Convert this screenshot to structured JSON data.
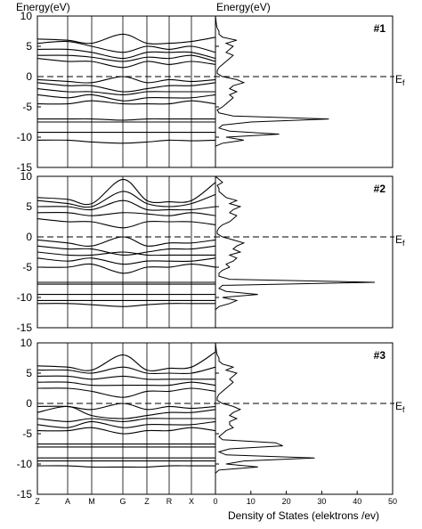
{
  "labels": {
    "energy_left": "Energy(eV)",
    "energy_right": "Energy(eV)",
    "xlabel": "Density of States (elektrons /ev)",
    "fermi": {
      "main": "E",
      "sub": "f"
    }
  },
  "chart_data": [
    {
      "type": "band_dos",
      "title": "#1",
      "ylim": [
        -15,
        10
      ],
      "yticks": [
        10,
        5,
        0,
        -5,
        -10,
        -15
      ],
      "fermi_level": 0,
      "dos_xlim": [
        0,
        50
      ],
      "bands": [
        {
          "values": [
            6.2,
            6.0,
            5.5,
            7.0,
            5.5,
            5.5,
            5.8,
            6.5
          ]
        },
        {
          "values": [
            5.5,
            5.8,
            5.0,
            4.0,
            5.0,
            4.5,
            5.0,
            4.0
          ]
        },
        {
          "values": [
            4.5,
            4.5,
            4.0,
            3.0,
            4.0,
            4.0,
            4.0,
            3.0
          ]
        },
        {
          "values": [
            3.5,
            3.5,
            3.2,
            2.5,
            3.2,
            3.0,
            3.5,
            2.5
          ]
        },
        {
          "values": [
            3.0,
            2.5,
            2.5,
            1.5,
            2.5,
            2.0,
            2.5,
            2.0
          ]
        },
        {
          "values": [
            -0.5,
            -0.8,
            -1.0,
            0.0,
            -1.0,
            -0.5,
            -0.8,
            -0.5
          ]
        },
        {
          "values": [
            -1.0,
            -1.5,
            -1.5,
            -2.5,
            -2.0,
            -1.5,
            -1.5,
            -1.0
          ]
        },
        {
          "values": [
            -2.0,
            -2.5,
            -2.5,
            -3.0,
            -2.5,
            -2.5,
            -2.5,
            -2.5
          ]
        },
        {
          "values": [
            -3.0,
            -3.5,
            -3.0,
            -4.0,
            -3.5,
            -3.5,
            -3.5,
            -3.0
          ]
        },
        {
          "values": [
            -4.5,
            -4.5,
            -4.0,
            -4.5,
            -4.5,
            -4.5,
            -4.0,
            -4.5
          ]
        },
        {
          "values": [
            -7.0,
            -7.0,
            -7.0,
            -7.2,
            -7.0,
            -7.0,
            -7.0,
            -7.0
          ]
        },
        {
          "values": [
            -7.5,
            -7.5,
            -7.5,
            -7.5,
            -7.5,
            -7.5,
            -7.5,
            -7.5
          ]
        },
        {
          "values": [
            -9.2,
            -9.2,
            -9.2,
            -9.2,
            -9.2,
            -9.2,
            -9.2,
            -9.2
          ]
        },
        {
          "values": [
            -10.5,
            -10.5,
            -10.8,
            -11.0,
            -10.8,
            -10.5,
            -10.6,
            -10.5
          ]
        }
      ],
      "dos": {
        "energy": [
          -12,
          -11.5,
          -11,
          -10.5,
          -10,
          -9.5,
          -9,
          -8.5,
          -8,
          -7.5,
          -7,
          -6.5,
          -6,
          -5.5,
          -5,
          -4.5,
          -4,
          -3.5,
          -3,
          -2.5,
          -2,
          -1.5,
          -1,
          -0.5,
          0,
          0.5,
          1,
          1.5,
          2,
          2.5,
          3,
          3.5,
          4,
          4.5,
          5,
          5.5,
          6,
          6.5,
          7,
          7.5,
          8,
          8.5,
          9,
          9.5,
          10
        ],
        "values": [
          0,
          0,
          2,
          8,
          3,
          18,
          4,
          1,
          2,
          10,
          32,
          5,
          1,
          0.5,
          2,
          3,
          4,
          5,
          4,
          6,
          4,
          5,
          8,
          6,
          2,
          0.5,
          0.5,
          1,
          2,
          3,
          4,
          5,
          3,
          4,
          5,
          3,
          6,
          2,
          1,
          1,
          0.5,
          0.3,
          0.2,
          0.1,
          0
        ]
      }
    },
    {
      "type": "band_dos",
      "title": "#2",
      "ylim": [
        -15,
        10
      ],
      "yticks": [
        10,
        5,
        0,
        -5,
        -10,
        -15
      ],
      "fermi_level": 0,
      "dos_xlim": [
        0,
        50
      ],
      "bands": [
        {
          "values": [
            6.5,
            6.2,
            5.5,
            9.5,
            6.0,
            5.8,
            6.0,
            9.0
          ]
        },
        {
          "values": [
            6.0,
            5.5,
            5.0,
            7.5,
            5.5,
            5.0,
            5.5,
            7.0
          ]
        },
        {
          "values": [
            5.0,
            5.0,
            4.5,
            6.0,
            4.5,
            4.5,
            4.5,
            5.0
          ]
        },
        {
          "values": [
            4.0,
            4.0,
            3.5,
            4.0,
            3.8,
            3.5,
            4.0,
            3.5
          ]
        },
        {
          "values": [
            3.0,
            2.5,
            2.5,
            1.5,
            2.5,
            2.5,
            2.5,
            2.0
          ]
        },
        {
          "values": [
            -0.5,
            -1.0,
            -1.5,
            0.0,
            -1.5,
            -1.0,
            -1.0,
            -0.5
          ]
        },
        {
          "values": [
            -1.5,
            -2.0,
            -2.0,
            -3.0,
            -2.5,
            -2.0,
            -2.0,
            -1.5
          ]
        },
        {
          "values": [
            -2.5,
            -3.0,
            -3.0,
            -2.5,
            -3.0,
            -3.0,
            -3.0,
            -3.0
          ]
        },
        {
          "values": [
            -3.5,
            -4.0,
            -3.5,
            -4.5,
            -4.0,
            -4.0,
            -4.0,
            -3.5
          ]
        },
        {
          "values": [
            -5.0,
            -5.0,
            -4.5,
            -6.0,
            -5.0,
            -5.0,
            -4.5,
            -5.0
          ]
        },
        {
          "values": [
            -7.5,
            -7.5,
            -7.5,
            -7.5,
            -7.5,
            -7.5,
            -7.5,
            -7.5
          ]
        },
        {
          "values": [
            -7.8,
            -7.8,
            -7.8,
            -7.8,
            -7.8,
            -7.8,
            -7.8,
            -7.8
          ]
        },
        {
          "values": [
            -9.5,
            -9.5,
            -9.5,
            -9.5,
            -9.5,
            -9.5,
            -9.5,
            -9.5
          ]
        },
        {
          "values": [
            -10.5,
            -10.5,
            -10.5,
            -10.5,
            -10.5,
            -10.5,
            -10.5,
            -10.5
          ]
        },
        {
          "values": [
            -11.0,
            -11.0,
            -11.2,
            -11.5,
            -11.2,
            -11.0,
            -11.0,
            -11.0
          ]
        }
      ],
      "dos": {
        "energy": [
          -12,
          -11.5,
          -11,
          -10.5,
          -10,
          -9.5,
          -9,
          -8.5,
          -8,
          -7.5,
          -7,
          -6.5,
          -6,
          -5.5,
          -5,
          -4.5,
          -4,
          -3.5,
          -3,
          -2.5,
          -2,
          -1.5,
          -1,
          -0.5,
          0,
          0.5,
          1,
          1.5,
          2,
          2.5,
          3,
          3.5,
          4,
          4.5,
          5,
          5.5,
          6,
          6.5,
          7,
          7.5,
          8,
          8.5,
          9,
          9.5,
          10
        ],
        "values": [
          0,
          1,
          4,
          6,
          2,
          12,
          3,
          1,
          2,
          45,
          4,
          1,
          1,
          2,
          4,
          3,
          5,
          6,
          4,
          7,
          5,
          6,
          8,
          5,
          2,
          0.5,
          0.5,
          1,
          2,
          4,
          5,
          6,
          4,
          5,
          7,
          4,
          6,
          3,
          2,
          1,
          1,
          0.5,
          2,
          1,
          0
        ]
      }
    },
    {
      "type": "band_dos",
      "title": "#3",
      "ylim": [
        -15,
        10
      ],
      "yticks": [
        10,
        5,
        0,
        -5,
        -10,
        -15
      ],
      "fermi_level": 0,
      "dos_xlim": [
        0,
        50
      ],
      "xticks": [
        0,
        10,
        20,
        30,
        40,
        50
      ],
      "k_labels": [
        "Z",
        "A",
        "M",
        "G",
        "Z",
        "R",
        "X",
        null
      ],
      "bands": [
        {
          "values": [
            6.2,
            6.0,
            5.5,
            8.0,
            5.5,
            5.8,
            6.0,
            8.5
          ]
        },
        {
          "values": [
            5.5,
            5.5,
            5.0,
            6.0,
            5.0,
            5.0,
            5.0,
            6.0
          ]
        },
        {
          "values": [
            4.5,
            4.5,
            4.0,
            4.5,
            4.0,
            4.0,
            4.0,
            4.0
          ]
        },
        {
          "values": [
            3.5,
            3.5,
            3.0,
            3.0,
            3.0,
            3.0,
            3.5,
            3.0
          ]
        },
        {
          "values": [
            2.5,
            2.5,
            2.0,
            1.0,
            2.0,
            2.0,
            2.5,
            2.0
          ]
        },
        {
          "values": [
            -0.5,
            -0.5,
            -1.0,
            0.0,
            -1.0,
            -0.5,
            -0.8,
            -0.5
          ]
        },
        {
          "values": [
            -1.5,
            -0.5,
            -2.0,
            -2.5,
            -2.0,
            -1.5,
            -1.5,
            -1.0
          ]
        },
        {
          "values": [
            -2.5,
            -3.0,
            -2.5,
            -3.0,
            -2.5,
            -2.5,
            -2.5,
            -2.5
          ]
        },
        {
          "values": [
            -3.5,
            -4.0,
            -3.0,
            -4.0,
            -3.5,
            -3.5,
            -3.5,
            -3.0
          ]
        },
        {
          "values": [
            -4.5,
            -4.5,
            -4.0,
            -5.0,
            -4.5,
            -4.5,
            -4.0,
            -4.5
          ]
        },
        {
          "values": [
            -6.7,
            -6.7,
            -6.7,
            -6.7,
            -6.7,
            -6.7,
            -6.7,
            -6.7
          ]
        },
        {
          "values": [
            -7.2,
            -7.2,
            -7.2,
            -7.2,
            -7.2,
            -7.2,
            -7.2,
            -7.2
          ]
        },
        {
          "values": [
            -9.0,
            -9.0,
            -9.0,
            -9.0,
            -9.0,
            -9.0,
            -9.0,
            -9.0
          ]
        },
        {
          "values": [
            -9.5,
            -9.5,
            -9.5,
            -9.5,
            -9.5,
            -9.5,
            -9.5,
            -9.5
          ]
        },
        {
          "values": [
            -10.3,
            -10.3,
            -10.5,
            -10.5,
            -10.5,
            -10.3,
            -10.3,
            -10.3
          ]
        }
      ],
      "dos": {
        "energy": [
          -12,
          -11.5,
          -11,
          -10.5,
          -10,
          -9.5,
          -9,
          -8.5,
          -8,
          -7.5,
          -7,
          -6.5,
          -6,
          -5.5,
          -5,
          -4.5,
          -4,
          -3.5,
          -3,
          -2.5,
          -2,
          -1.5,
          -1,
          -0.5,
          0,
          0.5,
          1,
          1.5,
          2,
          2.5,
          3,
          3.5,
          4,
          4.5,
          5,
          5.5,
          6,
          6.5,
          7,
          7.5,
          8,
          8.5,
          9,
          9.5,
          10
        ],
        "values": [
          0,
          0,
          1,
          12,
          3,
          8,
          28,
          3,
          1,
          4,
          19,
          17,
          2,
          1,
          2,
          3,
          5,
          4,
          4,
          6,
          4,
          5,
          7,
          5,
          2,
          0.5,
          0.5,
          1,
          2,
          3,
          4,
          5,
          4,
          5,
          6,
          3,
          5,
          2,
          1,
          1,
          0.5,
          0.3,
          0.2,
          0.1,
          0
        ]
      }
    }
  ]
}
